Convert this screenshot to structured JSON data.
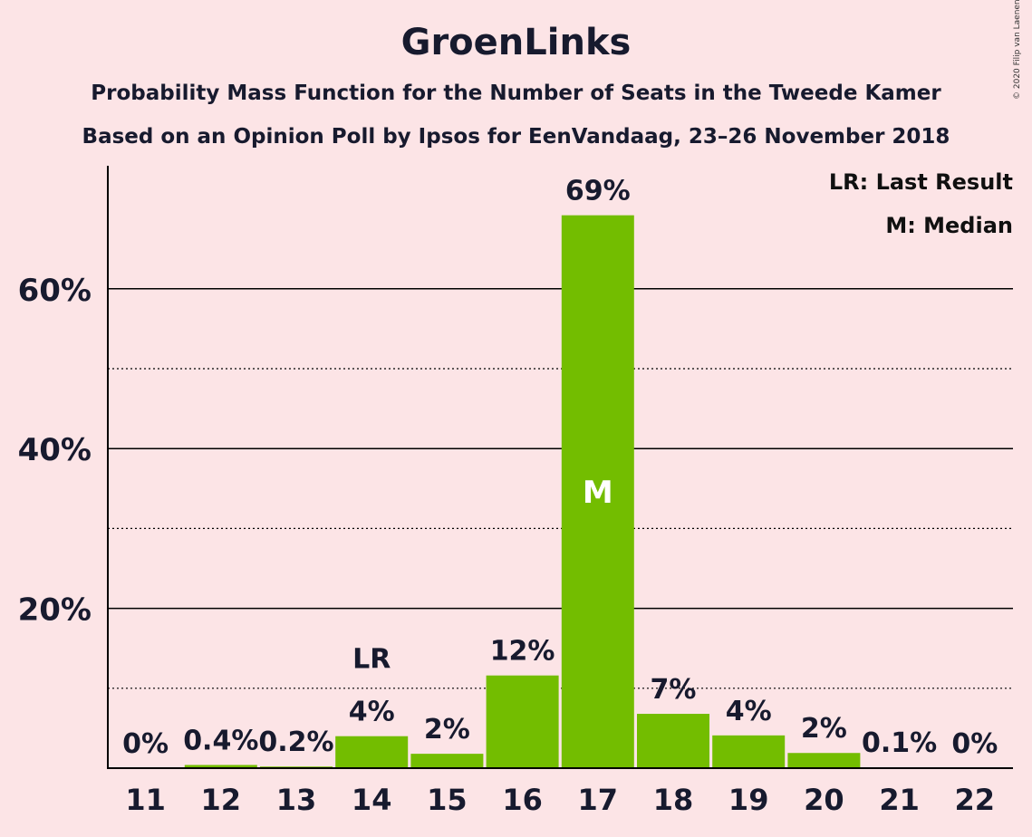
{
  "title": "GroenLinks",
  "subtitle1": "Probability Mass Function for the Number of Seats in the Tweede Kamer",
  "subtitle2": "Based on an Opinion Poll by Ipsos for EenVandaag, 23–26 November 2018",
  "copyright": "© 2020 Filip van Laenen",
  "legend": {
    "last_result": "LR: Last Result",
    "median": "M: Median"
  },
  "colors": {
    "bar": "#73bd00",
    "background": "#fce4e6",
    "text": "#171a2e"
  },
  "chart_data": {
    "type": "bar",
    "categories": [
      "11",
      "12",
      "13",
      "14",
      "15",
      "16",
      "17",
      "18",
      "19",
      "20",
      "21",
      "22"
    ],
    "values": [
      0,
      0.4,
      0.2,
      4,
      2,
      12,
      69,
      7,
      4,
      2,
      0.1,
      0
    ],
    "bar_values": [
      0,
      0.4,
      0.2,
      4.0,
      1.8,
      11.6,
      69.2,
      6.8,
      4.1,
      1.9,
      0.1,
      0
    ],
    "labels": [
      "0%",
      "0.4%",
      "0.2%",
      "4%",
      "2%",
      "12%",
      "69%",
      "7%",
      "4%",
      "2%",
      "0.1%",
      "0%"
    ],
    "yticks": [
      "20%",
      "40%",
      "60%"
    ],
    "ytick_values": [
      20,
      40,
      60
    ],
    "minor_gridlines": [
      10,
      30,
      50
    ],
    "ylim": [
      0,
      75
    ],
    "last_result_category": "14",
    "last_result_label": "LR",
    "median_category": "17",
    "median_label": "M",
    "grid": true,
    "legend_position": "top-right"
  }
}
